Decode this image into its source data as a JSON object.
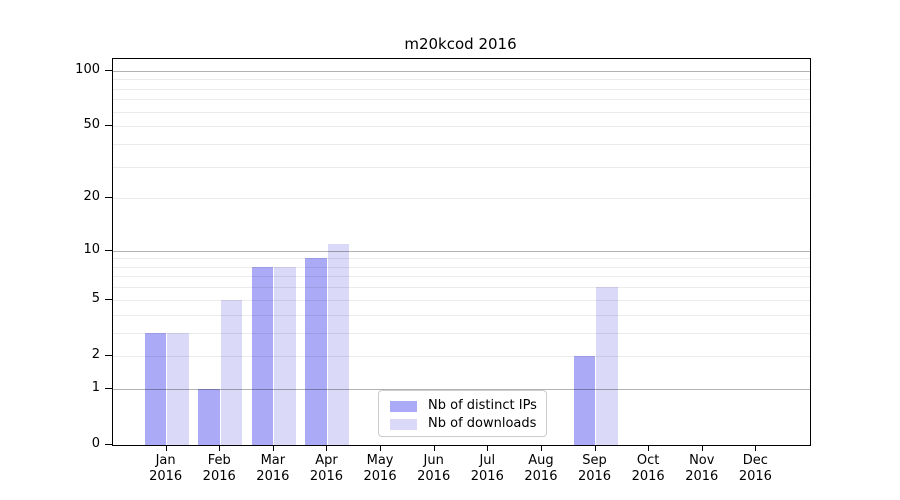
{
  "chart_data": {
    "type": "bar",
    "title": "m20kcod 2016",
    "categories": [
      {
        "month": "Jan",
        "year": "2016"
      },
      {
        "month": "Feb",
        "year": "2016"
      },
      {
        "month": "Mar",
        "year": "2016"
      },
      {
        "month": "Apr",
        "year": "2016"
      },
      {
        "month": "May",
        "year": "2016"
      },
      {
        "month": "Jun",
        "year": "2016"
      },
      {
        "month": "Jul",
        "year": "2016"
      },
      {
        "month": "Aug",
        "year": "2016"
      },
      {
        "month": "Sep",
        "year": "2016"
      },
      {
        "month": "Oct",
        "year": "2016"
      },
      {
        "month": "Nov",
        "year": "2016"
      },
      {
        "month": "Dec",
        "year": "2016"
      }
    ],
    "series": [
      {
        "name": "Nb of distinct IPs",
        "color": "#aaaaf6",
        "values": [
          3,
          1,
          8,
          9,
          0,
          0,
          0,
          0,
          2,
          0,
          0,
          0
        ]
      },
      {
        "name": "Nb of downloads",
        "color": "#dadaf8",
        "values": [
          3,
          5,
          8,
          11,
          0,
          0,
          0,
          0,
          6,
          0,
          0,
          0
        ]
      }
    ],
    "yscale": "log10(1+x)",
    "ylim": [
      0,
      116
    ],
    "yticks": [
      0,
      1,
      2,
      5,
      10,
      20,
      50,
      100
    ],
    "grid": {
      "major": [
        1,
        10,
        100
      ],
      "minor": [
        2,
        3,
        4,
        5,
        6,
        7,
        8,
        9,
        20,
        30,
        40,
        50,
        60,
        70,
        80,
        90
      ]
    },
    "legend_position": "inside-bottom-center"
  },
  "colors": {
    "background": "#ffffff",
    "spine": "#000000",
    "text": "#000000",
    "legend_border": "#cccccc",
    "bar_distinct_ips": "#aaaaf6",
    "bar_downloads": "#dadaf8",
    "major_grid": "rgba(0,0,0,0.30)",
    "minor_grid": "rgba(0,0,0,0.08)"
  }
}
